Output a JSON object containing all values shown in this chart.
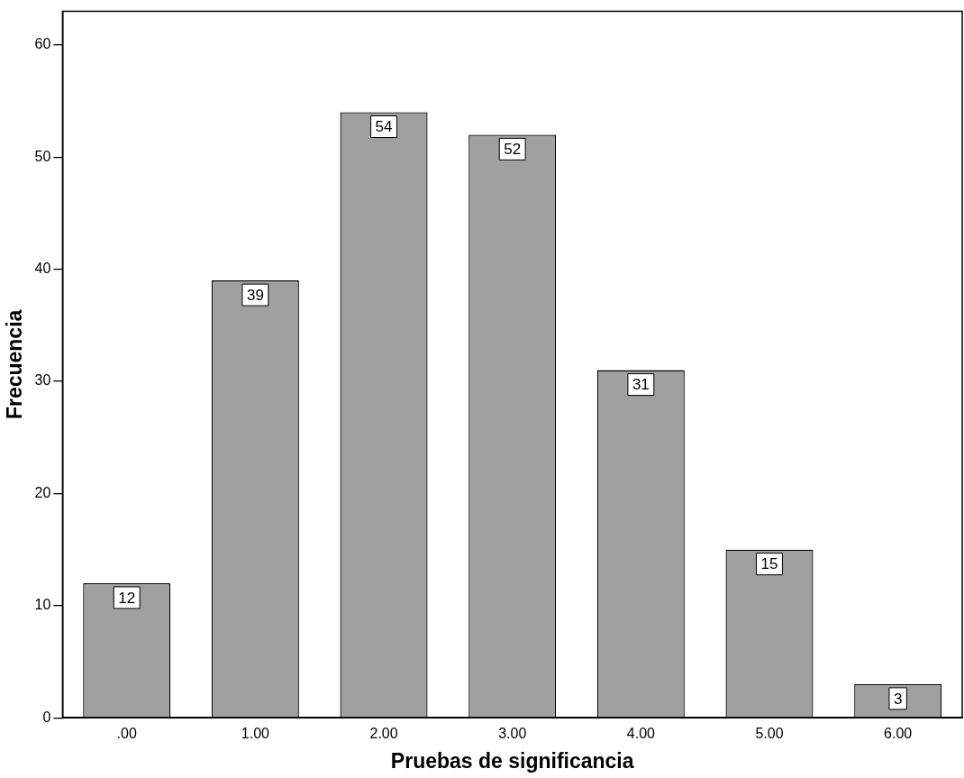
{
  "chart_data": {
    "type": "bar",
    "xlabel": "Pruebas de significancia",
    "ylabel": "Frecuencia",
    "categories": [
      ".00",
      "1.00",
      "2.00",
      "3.00",
      "4.00",
      "5.00",
      "6.00"
    ],
    "values": [
      12,
      39,
      54,
      52,
      31,
      15,
      3
    ],
    "color": "#a0a0a0",
    "ylim": [
      0,
      63
    ],
    "yticks": [
      0,
      10,
      20,
      30,
      40,
      50,
      60
    ],
    "grid": false,
    "legend": false,
    "data_labels": true
  }
}
